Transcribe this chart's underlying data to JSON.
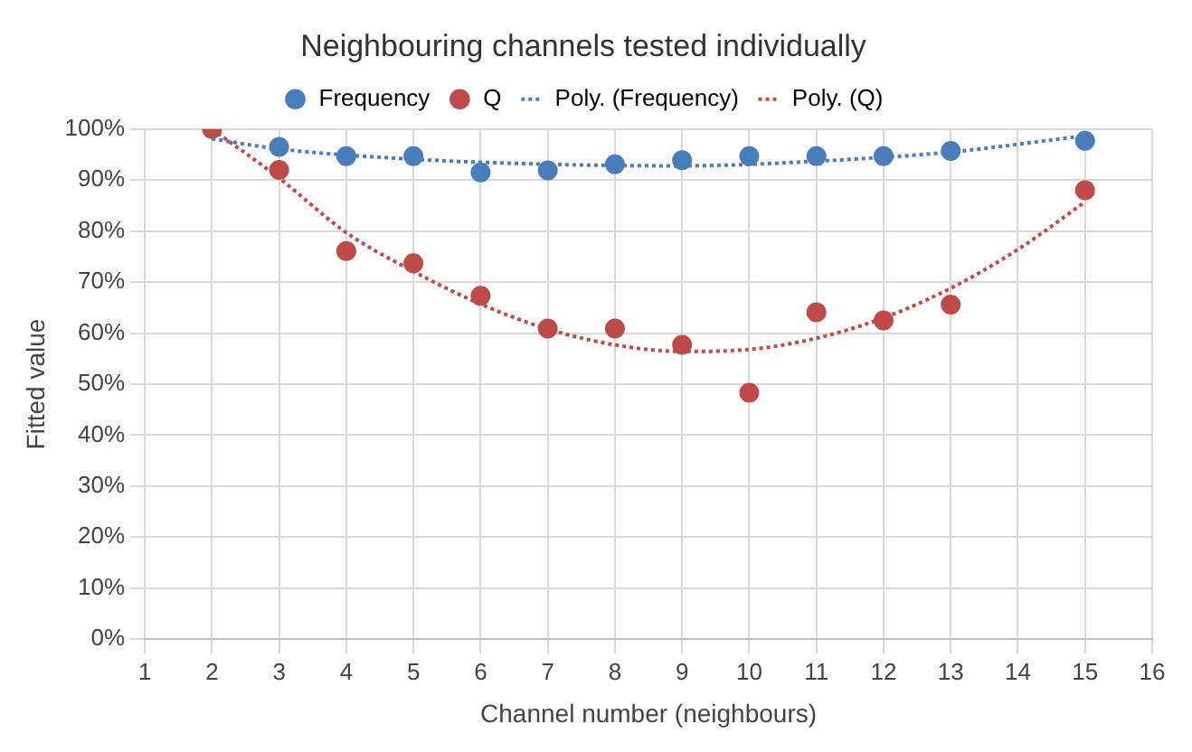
{
  "chart_data": {
    "type": "scatter",
    "title": "Neighbouring channels tested individually",
    "xlabel": "Channel number (neighbours)",
    "ylabel": "Fitted value",
    "xlim": [
      1,
      16
    ],
    "xticks": [
      1,
      2,
      3,
      4,
      5,
      6,
      7,
      8,
      9,
      10,
      11,
      12,
      13,
      14,
      15,
      16
    ],
    "ylim": [
      0,
      100
    ],
    "yticks": [
      {
        "value": 0,
        "label": "0%"
      },
      {
        "value": 10,
        "label": "10%"
      },
      {
        "value": 20,
        "label": "20%"
      },
      {
        "value": 30,
        "label": "30%"
      },
      {
        "value": 40,
        "label": "40%"
      },
      {
        "value": 50,
        "label": "50%"
      },
      {
        "value": 60,
        "label": "60%"
      },
      {
        "value": 70,
        "label": "70%"
      },
      {
        "value": 80,
        "label": "80%"
      },
      {
        "value": 90,
        "label": "90%"
      },
      {
        "value": 100,
        "label": "100%"
      }
    ],
    "grid": true,
    "legend": "top",
    "marker": "circle",
    "series": [
      {
        "name": "Frequency",
        "color": "#4a7ebb",
        "x": [
          3,
          4,
          5,
          6,
          7,
          8,
          9,
          10,
          11,
          12,
          13,
          15
        ],
        "values": [
          96.5,
          94.7,
          94.7,
          91.5,
          91.9,
          93.1,
          93.9,
          94.7,
          94.7,
          94.7,
          95.7,
          97.7
        ]
      },
      {
        "name": "Q",
        "color": "#be4b48",
        "x": [
          2,
          3,
          4,
          5,
          6,
          7,
          8,
          9,
          10,
          11,
          12,
          13,
          15
        ],
        "values": [
          100,
          92,
          76.1,
          73.7,
          67.3,
          60.9,
          60.9,
          57.7,
          48.3,
          64.1,
          62.5,
          65.6,
          88
        ]
      },
      {
        "name": "Poly. (Frequency)",
        "type": "line",
        "line_style": "dotted",
        "marker": "none",
        "color": "#4a7ebb",
        "x": [
          2,
          3,
          5,
          7,
          9,
          11,
          13,
          15
        ],
        "values": [
          98.1,
          96.1,
          94.1,
          93.1,
          92.8,
          93.7,
          95.5,
          98.7
        ]
      },
      {
        "name": "Poly. (Q)",
        "type": "line",
        "line_style": "dotted",
        "marker": "none",
        "color": "#be4b48",
        "x": [
          2,
          3,
          4,
          5,
          6,
          7,
          8,
          9,
          10,
          11,
          12,
          13,
          14,
          15
        ],
        "values": [
          100,
          90.4,
          79.7,
          72.1,
          65.7,
          60.8,
          57.7,
          56.4,
          56.8,
          59,
          63,
          68.8,
          76.4,
          85.7
        ]
      }
    ]
  }
}
